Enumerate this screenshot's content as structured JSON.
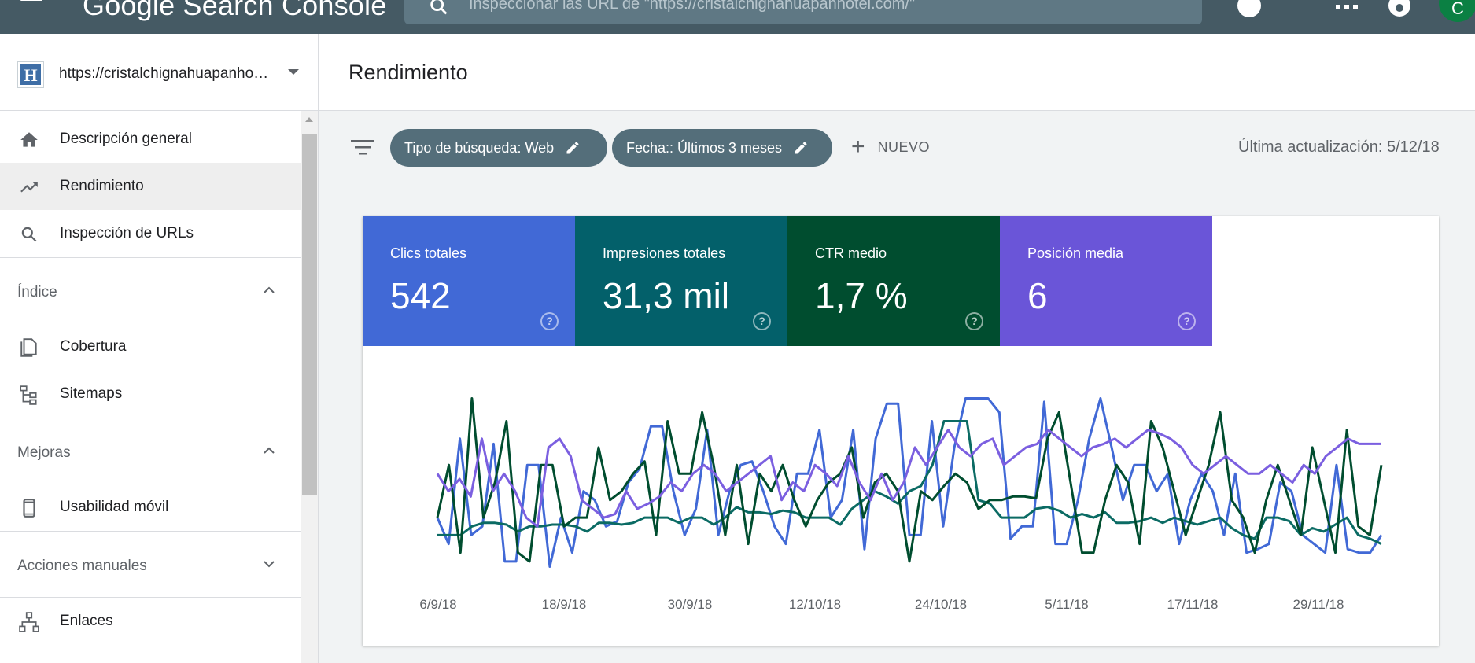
{
  "app": {
    "title": "Google Search Console",
    "search_placeholder": "Inspeccionar las URL de \"https://cristalchignahuapanhotel.com/\"",
    "avatar_letter": "C"
  },
  "sidebar": {
    "property_icon_letter": "H",
    "property_url": "https://cristalchignahuapanhotel.com/",
    "nav": {
      "overview": "Descripción general",
      "performance": "Rendimiento",
      "url_inspection": "Inspección de URLs",
      "index_section": "Índice",
      "coverage": "Cobertura",
      "sitemaps": "Sitemaps",
      "enhancements_section": "Mejoras",
      "mobile_usability": "Usabilidad móvil",
      "manual_actions_section": "Acciones manuales",
      "links": "Enlaces"
    }
  },
  "main": {
    "title": "Rendimiento",
    "filters": {
      "search_type_chip": "Tipo de búsqueda: Web",
      "date_chip": "Fecha:: Últimos 3 meses",
      "new_label": "NUEVO",
      "last_update": "Última actualización: 5/12/18"
    },
    "metrics": [
      {
        "label": "Clics totales",
        "value": "542",
        "color": "#4169d6"
      },
      {
        "label": "Impresiones totales",
        "value": "31,3 mil",
        "color": "#03606a"
      },
      {
        "label": "CTR medio",
        "value": "1,7 %",
        "color": "#004d2f"
      },
      {
        "label": "Posición media",
        "value": "6",
        "color": "#6a55d8"
      }
    ],
    "help_glyph": "?"
  },
  "colors": {
    "topbar": "#455a64",
    "chip": "#546e7a",
    "clicks_line": "#4169d6",
    "impressions_line": "#0b6b64",
    "ctr_line": "#004d2f",
    "position_line": "#7b5fe0"
  },
  "chart_data": {
    "type": "line",
    "x_tick_labels": [
      "6/9/18",
      "18/9/18",
      "30/9/18",
      "12/10/18",
      "24/10/18",
      "5/11/18",
      "17/11/18",
      "29/11/18"
    ],
    "x_start": "4/9/18",
    "x_end": "4/12/18",
    "y_axis_visible": false,
    "grid": false,
    "series": [
      {
        "name": "Clics totales",
        "color": "#4169d6",
        "values": [
          0.3,
          0.15,
          0.75,
          0.2,
          0.25,
          0.72,
          0.05,
          0.05,
          0.6,
          0.6,
          0.02,
          0.3,
          0.1,
          0.45,
          0.4,
          0.25,
          0.28,
          0.5,
          0.58,
          0.82,
          0.82,
          0.45,
          0.2,
          0.35,
          0.8,
          0.2,
          0.45,
          0.6,
          0.62,
          0.45,
          0.25,
          0.15,
          0.55,
          0.55,
          0.8,
          0.3,
          0.4,
          0.8,
          0.12,
          0.75,
          0.95,
          0.95,
          0.2,
          0.2,
          0.85,
          0.25,
          0.7,
          0.98,
          0.98,
          0.98,
          0.9,
          0.18,
          0.25,
          0.25,
          0.96,
          0.15,
          0.15,
          0.4,
          0.75,
          0.98,
          0.7,
          0.4,
          0.6,
          0.6,
          0.45,
          0.55,
          0.15,
          0.4,
          0.55,
          0.45,
          0.2,
          0.55,
          0.1,
          0.12,
          0.15,
          0.5,
          0.45,
          0.2,
          0.15,
          0.1,
          0.6,
          0.12,
          0.1,
          0.1,
          0.2
        ]
      },
      {
        "name": "Impresiones totales",
        "color": "#0b6b64",
        "values": [
          0.2,
          0.2,
          0.2,
          0.25,
          0.27,
          0.27,
          0.26,
          0.22,
          0.25,
          0.25,
          0.26,
          0.26,
          0.25,
          0.22,
          0.27,
          0.27,
          0.26,
          0.27,
          0.3,
          0.3,
          0.3,
          0.27,
          0.3,
          0.3,
          0.26,
          0.3,
          0.36,
          0.33,
          0.33,
          0.32,
          0.34,
          0.33,
          0.3,
          0.3,
          0.3,
          0.26,
          0.35,
          0.4,
          0.45,
          0.42,
          0.38,
          0.45,
          0.48,
          0.6,
          0.85,
          0.85,
          0.85,
          0.4,
          0.38,
          0.3,
          0.3,
          0.3,
          0.35,
          0.36,
          0.34,
          0.3,
          0.32,
          0.3,
          0.33,
          0.27,
          0.27,
          0.28,
          0.3,
          0.27,
          0.3,
          0.28,
          0.26,
          0.28,
          0.3,
          0.24,
          0.2,
          0.18,
          0.3,
          0.3,
          0.28,
          0.2,
          0.24,
          0.22,
          0.26,
          0.3,
          0.2,
          0.18,
          0.15
        ]
      },
      {
        "name": "CTR medio",
        "color": "#004d2f",
        "values": [
          0.3,
          0.6,
          0.1,
          0.98,
          0.3,
          0.5,
          0.85,
          0.1,
          0.05,
          0.6,
          0.6,
          0.25,
          0.3,
          0.3,
          0.7,
          0.4,
          0.45,
          0.55,
          0.62,
          0.2,
          0.85,
          0.55,
          0.55,
          0.9,
          0.6,
          0.2,
          0.6,
          0.15,
          0.55,
          0.45,
          0.6,
          0.4,
          0.25,
          0.4,
          0.5,
          0.55,
          0.7,
          0.3,
          0.5,
          0.55,
          0.45,
          0.05,
          0.45,
          0.4,
          0.48,
          0.55,
          0.5,
          0.35,
          0.4,
          0.4,
          0.42,
          0.42,
          0.41,
          0.75,
          0.9,
          0.5,
          0.1,
          0.1,
          0.4,
          0.6,
          0.5,
          0.15,
          0.85,
          0.7,
          0.45,
          0.2,
          0.4,
          0.6,
          0.9,
          0.4,
          0.3,
          0.1,
          0.4,
          0.6,
          0.4,
          0.2,
          0.7,
          0.4,
          0.1,
          0.8,
          0.25,
          0.2,
          0.6
        ]
      },
      {
        "name": "Posición media",
        "color": "#7b5fe0",
        "values": [
          0.55,
          0.45,
          0.52,
          0.42,
          0.75,
          0.45,
          0.55,
          0.45,
          0.3,
          0.25,
          0.7,
          0.75,
          0.65,
          0.4,
          0.35,
          0.3,
          0.32,
          0.45,
          0.35,
          0.38,
          0.42,
          0.5,
          0.45,
          0.55,
          0.6,
          0.55,
          0.45,
          0.5,
          0.55,
          0.6,
          0.65,
          0.4,
          0.5,
          0.45,
          0.6,
          0.55,
          0.48,
          0.65,
          0.5,
          0.4,
          0.55,
          0.4,
          0.5,
          0.7,
          0.6,
          0.7,
          0.8,
          0.7,
          0.65,
          0.72,
          0.75,
          0.6,
          0.65,
          0.7,
          0.72,
          0.8,
          0.75,
          0.7,
          0.65,
          0.7,
          0.72,
          0.75,
          0.7,
          0.75,
          0.8,
          0.78,
          0.75,
          0.7,
          0.6,
          0.55,
          0.6,
          0.65,
          0.6,
          0.55,
          0.55,
          0.6,
          0.55,
          0.5,
          0.6,
          0.55,
          0.65,
          0.7,
          0.75,
          0.72,
          0.72,
          0.72
        ]
      }
    ]
  }
}
